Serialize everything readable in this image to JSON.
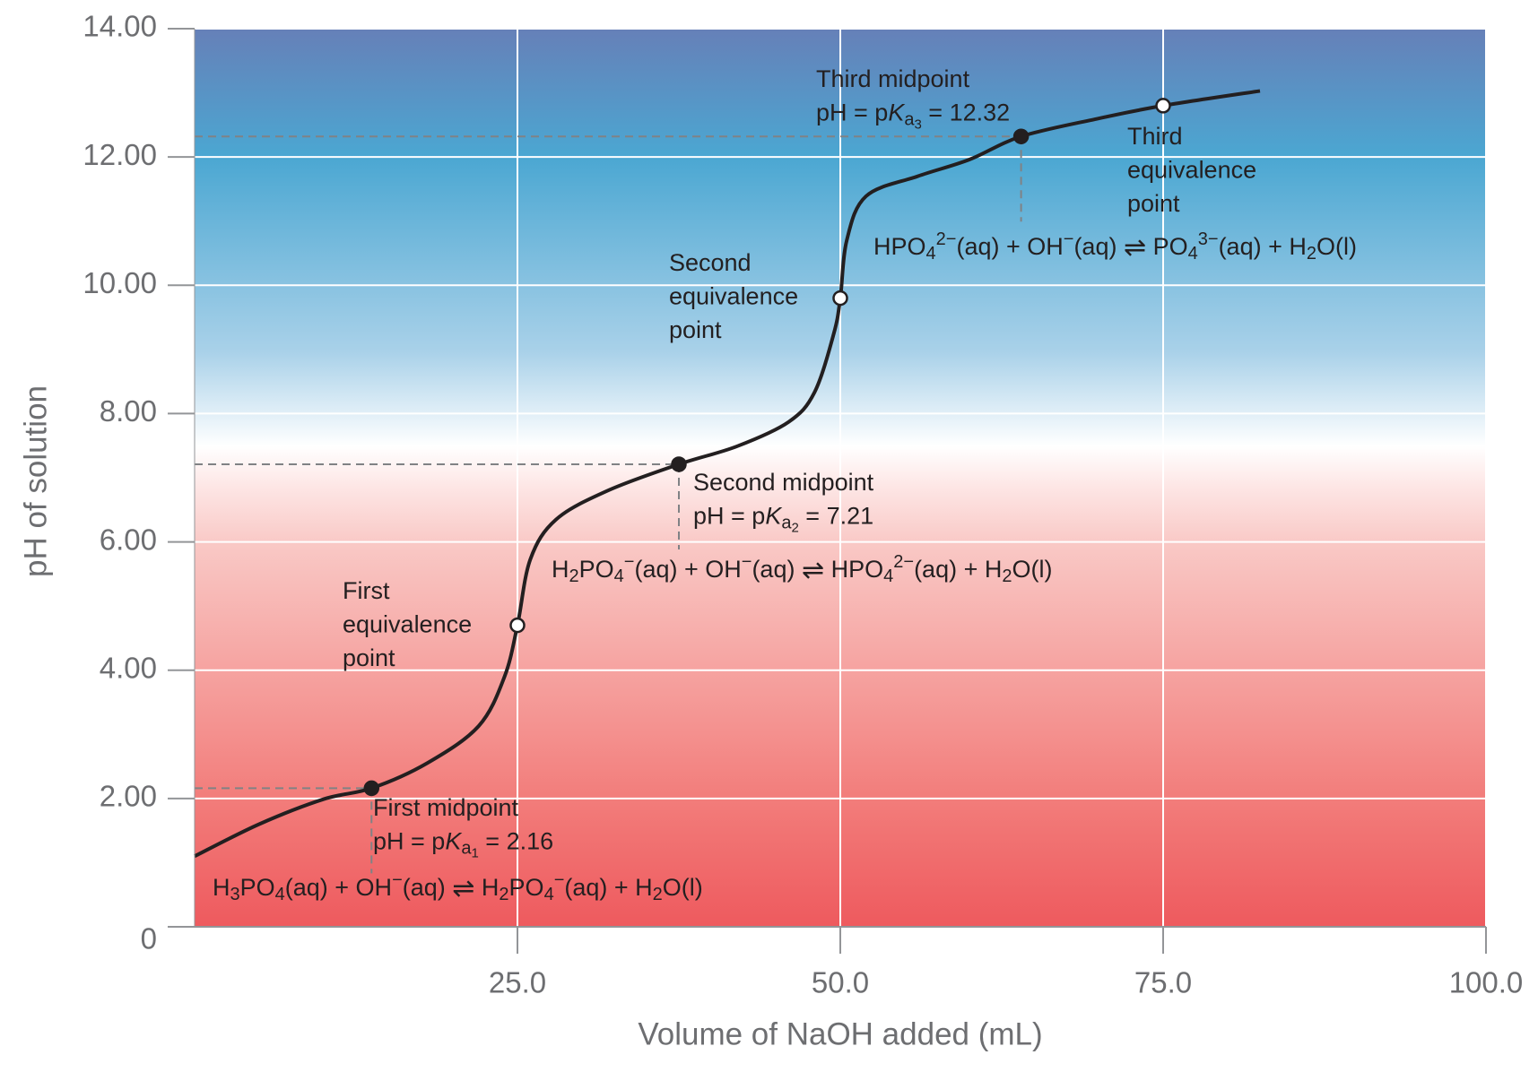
{
  "chart_data": {
    "type": "line",
    "xlabel": "Volume of NaOH added (mL)",
    "ylabel": "pH of solution",
    "xlim": [
      0,
      100
    ],
    "xticks": [
      {
        "value": 25,
        "label": "25.0"
      },
      {
        "value": 50,
        "label": "50.0"
      },
      {
        "value": 75,
        "label": "75.0"
      },
      {
        "value": 100,
        "label": "100.0"
      }
    ],
    "ylim": [
      0,
      14
    ],
    "yticks": [
      0,
      {
        "value": 2,
        "label": "2.00"
      },
      {
        "value": 4,
        "label": "4.00"
      },
      {
        "value": 6,
        "label": "6.00"
      },
      {
        "value": 8,
        "label": "8.00"
      },
      {
        "value": 10,
        "label": "10.00"
      },
      {
        "value": 12,
        "label": "12.00"
      },
      {
        "value": 14,
        "label": "14.00"
      }
    ],
    "grid": true,
    "color": "#231f20",
    "x": [
      0,
      5,
      10,
      13.7,
      18,
      22,
      24,
      25,
      26,
      28,
      32,
      37.5,
      42,
      46,
      48,
      49.5,
      50,
      50.5,
      52,
      56,
      60,
      64,
      70,
      75,
      82.5
    ],
    "values": [
      1.1,
      1.6,
      1.99,
      2.16,
      2.55,
      3.13,
      3.9,
      4.7,
      5.73,
      6.35,
      6.8,
      7.21,
      7.49,
      7.87,
      8.33,
      9.25,
      9.8,
      10.7,
      11.39,
      11.7,
      11.96,
      12.32,
      12.6,
      12.8,
      13.03
    ],
    "markers": {
      "x": [
        13.7,
        25,
        37.5,
        50,
        64,
        75
      ],
      "values": [
        2.16,
        4.7,
        7.21,
        9.8,
        12.32,
        12.8
      ],
      "filled": [
        true,
        false,
        true,
        false,
        true,
        false
      ]
    },
    "annotations": [
      {
        "lines": [
          [
            {
              "text": "Third midpoint"
            }
          ],
          [
            {
              "text": "pH = p"
            },
            {
              "text": "K",
              "style": "italic"
            },
            {
              "text": "a",
              "style": "sub"
            },
            {
              "text": "3",
              "style": "subsub"
            },
            {
              "text": " = 12.32"
            }
          ]
        ]
      },
      {
        "lines": [
          [
            {
              "text": "Third"
            }
          ],
          [
            {
              "text": "equivalence"
            }
          ],
          [
            {
              "text": "point"
            }
          ]
        ]
      },
      {
        "lines": [
          [
            {
              "text": "HPO"
            },
            {
              "text": "4",
              "style": "sub"
            },
            {
              "text": "2−",
              "style": "sup"
            },
            {
              "text": "(aq) + OH"
            },
            {
              "text": "−",
              "style": "sup"
            },
            {
              "text": "(aq) "
            },
            {
              "text": "⇌",
              "style": "arrow"
            },
            {
              "text": " PO"
            },
            {
              "text": "4",
              "style": "sub"
            },
            {
              "text": "3−",
              "style": "sup"
            },
            {
              "text": "(aq) + H"
            },
            {
              "text": "2",
              "style": "sub"
            },
            {
              "text": "O(l)"
            }
          ]
        ]
      },
      {
        "lines": [
          [
            {
              "text": "Second"
            }
          ],
          [
            {
              "text": "equivalence"
            }
          ],
          [
            {
              "text": "point"
            }
          ]
        ]
      },
      {
        "lines": [
          [
            {
              "text": "Second midpoint"
            }
          ],
          [
            {
              "text": "pH = p"
            },
            {
              "text": "K",
              "style": "italic"
            },
            {
              "text": "a",
              "style": "sub"
            },
            {
              "text": "2",
              "style": "subsub"
            },
            {
              "text": " = 7.21"
            }
          ]
        ]
      },
      {
        "lines": [
          [
            {
              "text": "H"
            },
            {
              "text": "2",
              "style": "sub"
            },
            {
              "text": "PO"
            },
            {
              "text": "4",
              "style": "sub"
            },
            {
              "text": "−",
              "style": "sup"
            },
            {
              "text": "(aq) + OH"
            },
            {
              "text": "−",
              "style": "sup"
            },
            {
              "text": "(aq) "
            },
            {
              "text": "⇌",
              "style": "arrow"
            },
            {
              "text": " HPO"
            },
            {
              "text": "4",
              "style": "sub"
            },
            {
              "text": "2−",
              "style": "sup"
            },
            {
              "text": "(aq) + H"
            },
            {
              "text": "2",
              "style": "sub"
            },
            {
              "text": "O(l)"
            }
          ]
        ]
      },
      {
        "lines": [
          [
            {
              "text": "First"
            }
          ],
          [
            {
              "text": "equivalence"
            }
          ],
          [
            {
              "text": "point"
            }
          ]
        ]
      },
      {
        "lines": [
          [
            {
              "text": "First midpoint"
            }
          ],
          [
            {
              "text": "pH = p"
            },
            {
              "text": "K",
              "style": "italic"
            },
            {
              "text": "a",
              "style": "sub"
            },
            {
              "text": "1",
              "style": "subsub"
            },
            {
              "text": " = 2.16"
            }
          ]
        ]
      },
      {
        "lines": [
          [
            {
              "text": "H"
            },
            {
              "text": "3",
              "style": "sub"
            },
            {
              "text": "PO"
            },
            {
              "text": "4",
              "style": "sub"
            },
            {
              "text": "(aq) + OH"
            },
            {
              "text": "−",
              "style": "sup"
            },
            {
              "text": "(aq) "
            },
            {
              "text": "⇌",
              "style": "arrow"
            },
            {
              "text": " H"
            },
            {
              "text": "2",
              "style": "sub"
            },
            {
              "text": "PO"
            },
            {
              "text": "4",
              "style": "sub"
            },
            {
              "text": "−",
              "style": "sup"
            },
            {
              "text": "(aq) + H"
            },
            {
              "text": "2",
              "style": "sub"
            },
            {
              "text": "O(l)"
            }
          ]
        ]
      }
    ]
  }
}
